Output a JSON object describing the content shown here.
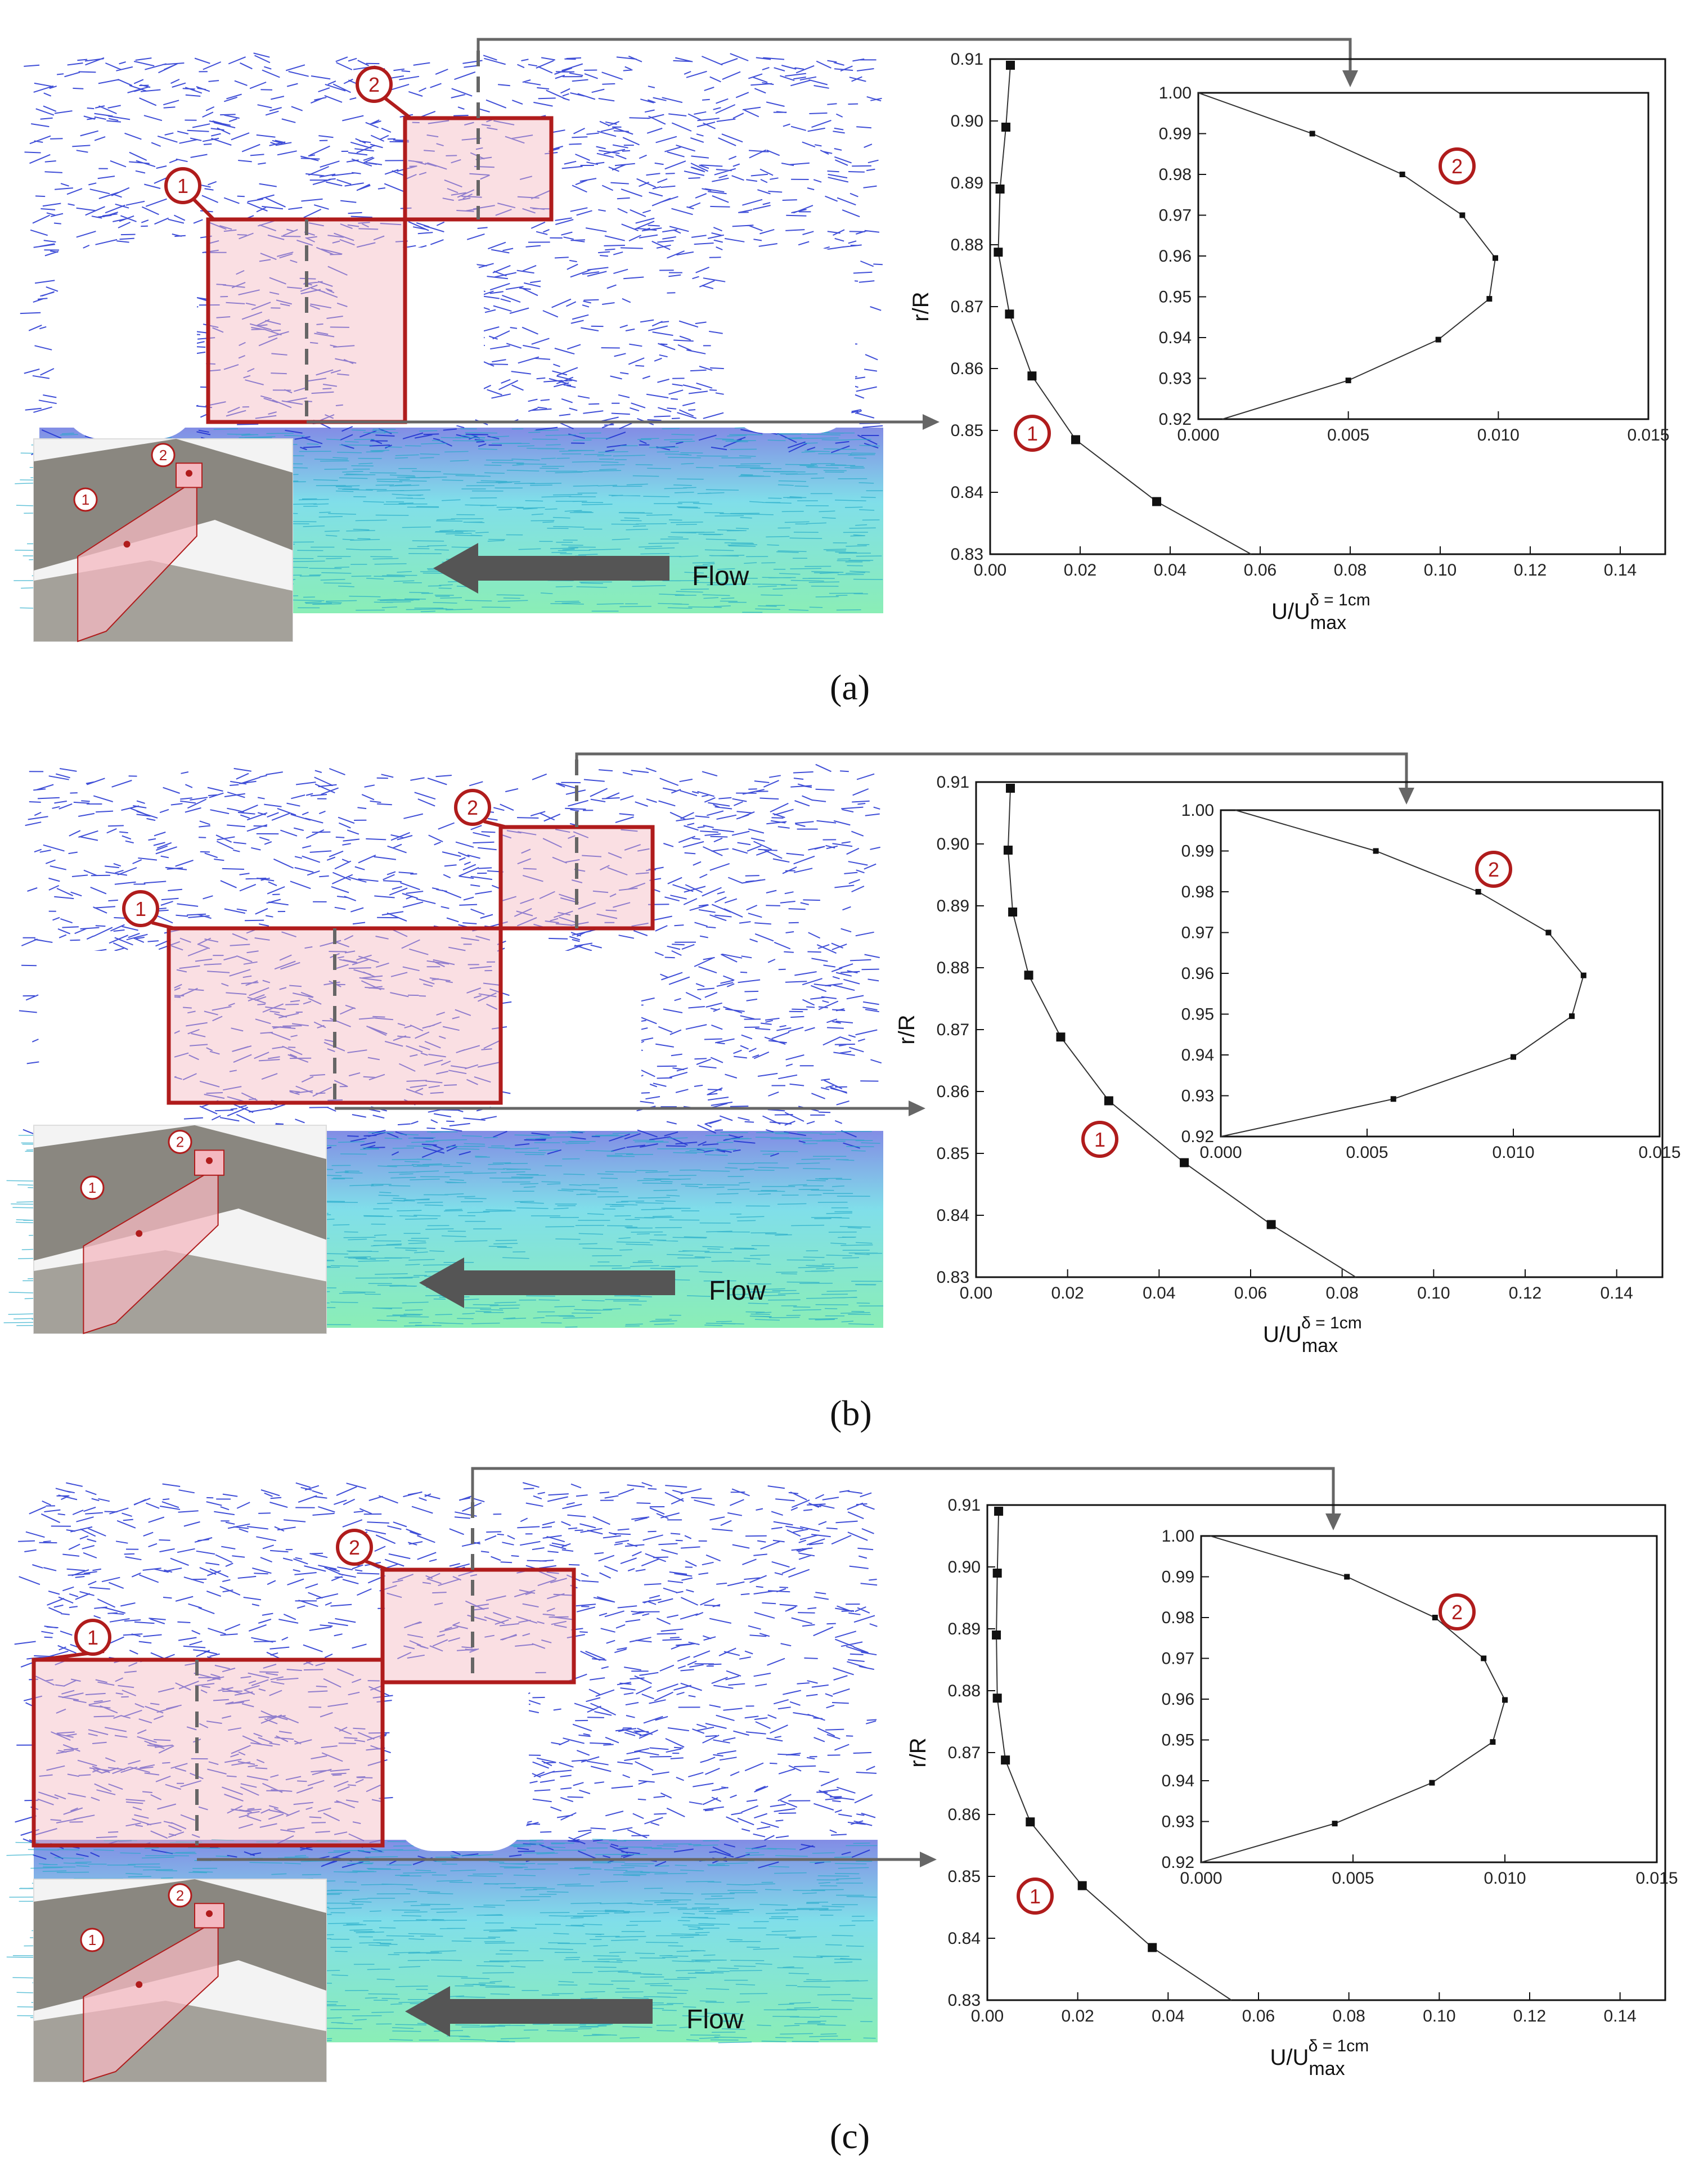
{
  "figure": {
    "flow_label": "Flow",
    "marker_1": "1",
    "marker_2": "2"
  },
  "colors": {
    "highlight_box": "#b01c1c",
    "highlight_fill": "#f4b8c0",
    "vector_blue": "#1d2fd0",
    "vector_cyan": "#19c4d8",
    "vector_green": "#2be07a",
    "arrow_gray": "#555555",
    "marker_red": "#b01c1c"
  },
  "chart_data": [
    {
      "panel": "(a)",
      "type": "line",
      "main": {
        "ylabel": "r/R",
        "xlabel_base": "U/U",
        "xlabel_sub": "max",
        "xlabel_sup": "δ = 1cm",
        "xlim": [
          0,
          0.15
        ],
        "ylim": [
          0.83,
          0.91
        ],
        "xticks": [
          "0.00",
          "0.02",
          "0.04",
          "0.06",
          "0.08",
          "0.10",
          "0.12",
          "0.14"
        ],
        "yticks": [
          "0.83",
          "0.84",
          "0.85",
          "0.86",
          "0.87",
          "0.88",
          "0.89",
          "0.90",
          "0.91"
        ],
        "x": [
          0.0045,
          0.0035,
          0.0022,
          0.0018,
          0.0043,
          0.0093,
          0.019,
          0.037,
          0.058
        ],
        "y": [
          0.909,
          0.899,
          0.889,
          0.8788,
          0.8688,
          0.8588,
          0.8485,
          0.8385,
          0.83
        ]
      },
      "inset": {
        "xlim": [
          0,
          0.015
        ],
        "ylim": [
          0.92,
          1.0
        ],
        "xticks": [
          "0.000",
          "0.005",
          "0.010",
          "0.015"
        ],
        "yticks": [
          "0.92",
          "0.93",
          "0.94",
          "0.95",
          "0.96",
          "0.97",
          "0.98",
          "0.99",
          "1.00"
        ],
        "x": [
          0.0,
          0.0038,
          0.0068,
          0.0088,
          0.0099,
          0.0097,
          0.008,
          0.005,
          0.0008
        ],
        "y": [
          1.0,
          0.99,
          0.98,
          0.97,
          0.9595,
          0.9495,
          0.9395,
          0.9295,
          0.92
        ]
      }
    },
    {
      "panel": "(b)",
      "type": "line",
      "main": {
        "ylabel": "r/R",
        "xlabel_base": "U/U",
        "xlabel_sub": "max",
        "xlabel_sup": "δ = 1cm",
        "xlim": [
          0,
          0.15
        ],
        "ylim": [
          0.83,
          0.91
        ],
        "xticks": [
          "0.00",
          "0.02",
          "0.04",
          "0.06",
          "0.08",
          "0.10",
          "0.12",
          "0.14"
        ],
        "yticks": [
          "0.83",
          "0.84",
          "0.85",
          "0.86",
          "0.87",
          "0.88",
          "0.89",
          "0.90",
          "0.91"
        ],
        "x": [
          0.0075,
          0.007,
          0.008,
          0.0115,
          0.0185,
          0.029,
          0.0455,
          0.0645,
          0.083
        ],
        "y": [
          0.909,
          0.899,
          0.889,
          0.8788,
          0.8688,
          0.8585,
          0.8485,
          0.8385,
          0.83
        ]
      },
      "inset": {
        "xlim": [
          0,
          0.015
        ],
        "ylim": [
          0.92,
          1.0
        ],
        "xticks": [
          "0.000",
          "0.005",
          "0.010",
          "0.015"
        ],
        "yticks": [
          "0.92",
          "0.93",
          "0.94",
          "0.95",
          "0.96",
          "0.97",
          "0.98",
          "0.99",
          "1.00"
        ],
        "x": [
          0.0005,
          0.0053,
          0.0088,
          0.0112,
          0.0124,
          0.012,
          0.01,
          0.0059,
          0.0
        ],
        "y": [
          1.0,
          0.99,
          0.98,
          0.97,
          0.9595,
          0.9495,
          0.9395,
          0.9292,
          0.92
        ]
      }
    },
    {
      "panel": "(c)",
      "type": "line",
      "main": {
        "ylabel": "r/R",
        "xlabel_base": "U/U",
        "xlabel_sub": "max",
        "xlabel_sup": "δ = 1cm",
        "xlim": [
          0,
          0.15
        ],
        "ylim": [
          0.83,
          0.91
        ],
        "xticks": [
          "0.00",
          "0.02",
          "0.04",
          "0.06",
          "0.08",
          "0.10",
          "0.12",
          "0.14"
        ],
        "yticks": [
          "0.83",
          "0.84",
          "0.85",
          "0.86",
          "0.87",
          "0.88",
          "0.89",
          "0.90",
          "0.91"
        ],
        "x": [
          0.0025,
          0.0022,
          0.002,
          0.0022,
          0.004,
          0.0095,
          0.021,
          0.0365,
          0.054
        ],
        "y": [
          0.909,
          0.899,
          0.889,
          0.8788,
          0.8688,
          0.8588,
          0.8485,
          0.8385,
          0.83
        ]
      },
      "inset": {
        "xlim": [
          0,
          0.015
        ],
        "ylim": [
          0.92,
          1.0
        ],
        "xticks": [
          "0.000",
          "0.005",
          "0.010",
          "0.015"
        ],
        "yticks": [
          "0.92",
          "0.93",
          "0.94",
          "0.95",
          "0.96",
          "0.97",
          "0.98",
          "0.99",
          "1.00"
        ],
        "x": [
          0.0003,
          0.0048,
          0.0077,
          0.0093,
          0.01,
          0.0096,
          0.0076,
          0.0044,
          0.0
        ],
        "y": [
          1.0,
          0.99,
          0.98,
          0.97,
          0.9598,
          0.9495,
          0.9395,
          0.9295,
          0.92
        ]
      }
    }
  ]
}
